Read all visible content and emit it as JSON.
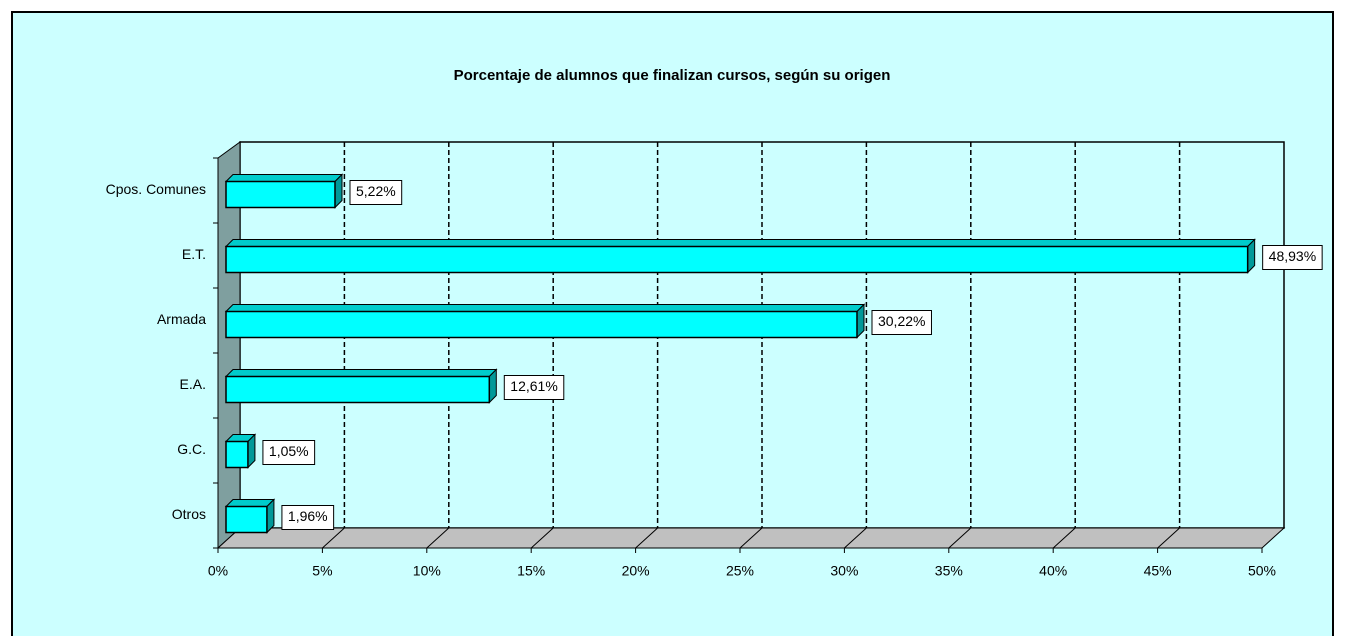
{
  "chart_data": {
    "type": "bar",
    "orientation": "horizontal",
    "title": "Porcentaje de alumnos que finalizan cursos, según su  origen",
    "categories": [
      "Cpos. Comunes",
      "E.T.",
      "Armada",
      "E.A.",
      "G.C.",
      "Otros"
    ],
    "values": [
      5.22,
      48.93,
      30.22,
      12.61,
      1.05,
      1.96
    ],
    "value_labels": [
      "5,22%",
      "48,93%",
      "30,22%",
      "12,61%",
      "1,05%",
      "1,96%"
    ],
    "color": "#00ffff",
    "xlim": [
      0,
      50
    ],
    "xticks": [
      {
        "value": 0,
        "label": "0%"
      },
      {
        "value": 5,
        "label": "5%"
      },
      {
        "value": 10,
        "label": "10%"
      },
      {
        "value": 15,
        "label": "15%"
      },
      {
        "value": 20,
        "label": "20%"
      },
      {
        "value": 25,
        "label": "25%"
      },
      {
        "value": 30,
        "label": "30%"
      },
      {
        "value": 35,
        "label": "35%"
      },
      {
        "value": 40,
        "label": "40%"
      },
      {
        "value": 45,
        "label": "45%"
      },
      {
        "value": 50,
        "label": "50%"
      }
    ],
    "grid": true
  }
}
